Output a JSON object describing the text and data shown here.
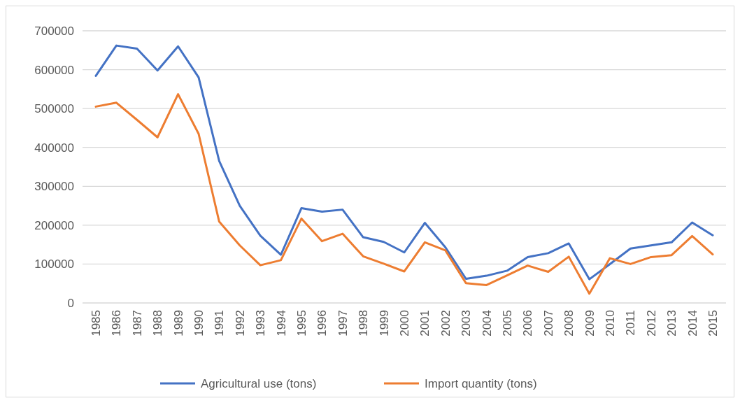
{
  "chart_data": {
    "type": "line",
    "categories": [
      "1985",
      "1986",
      "1987",
      "1988",
      "1989",
      "1990",
      "1991",
      "1992",
      "1993",
      "1994",
      "1995",
      "1996",
      "1997",
      "1998",
      "1999",
      "2000",
      "2001",
      "2002",
      "2003",
      "2004",
      "2005",
      "2006",
      "2007",
      "2008",
      "2009",
      "2010",
      "2011",
      "2012",
      "2013",
      "2014",
      "2015"
    ],
    "series": [
      {
        "name": "Agricultural use (tons)",
        "color": "#4472c4",
        "values": [
          584000,
          662000,
          654000,
          598000,
          660000,
          580000,
          365000,
          250000,
          173000,
          124000,
          244000,
          235000,
          240000,
          169000,
          157000,
          130000,
          206000,
          143000,
          62000,
          70000,
          83000,
          118000,
          128000,
          153000,
          61000,
          100000,
          140000,
          148000,
          156000,
          207000,
          174000
        ]
      },
      {
        "name": "Import quantity (tons)",
        "color": "#ed7d31",
        "values": [
          505000,
          515000,
          471000,
          426000,
          537000,
          435000,
          209000,
          148000,
          97000,
          110000,
          217000,
          159000,
          178000,
          120000,
          101000,
          81000,
          156000,
          135000,
          51000,
          46000,
          71000,
          96000,
          80000,
          119000,
          24000,
          115000,
          100000,
          118000,
          123000,
          172000,
          125000
        ]
      }
    ],
    "ylim": [
      0,
      700000
    ],
    "yticks": [
      0,
      100000,
      200000,
      300000,
      400000,
      500000,
      600000,
      700000
    ],
    "grid": "y",
    "legend": "bottom",
    "marker": "none",
    "line_style": "solid"
  }
}
